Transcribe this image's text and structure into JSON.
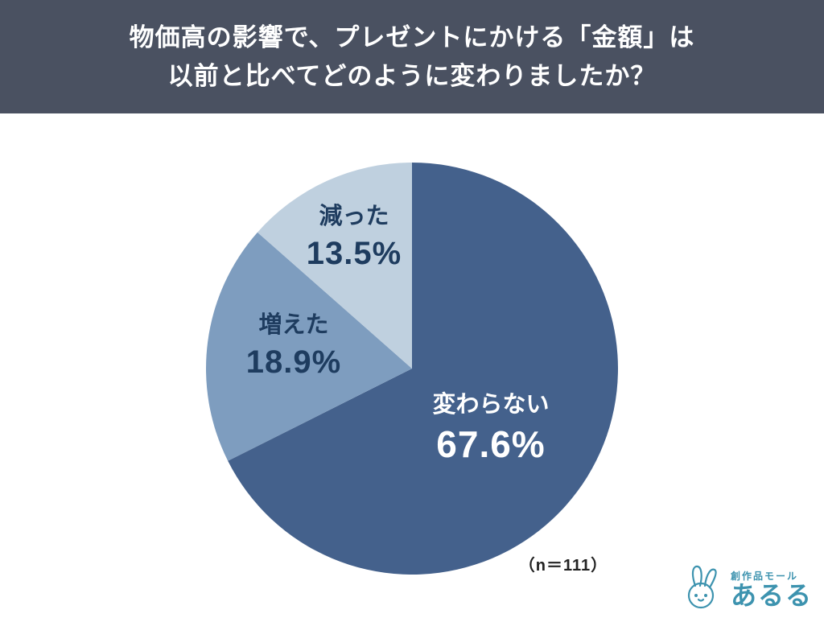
{
  "header": {
    "line1": "物価高の影響で、プレゼントにかける「金額」は",
    "line2": "以前と比べてどのように変わりましたか？",
    "bg_color": "#4a5161",
    "text_color": "#ffffff"
  },
  "chart_data": {
    "type": "pie",
    "title": "物価高の影響で、プレゼントにかける「金額」は以前と比べてどのように変わりましたか？",
    "start_angle": "top",
    "direction": "clockwise",
    "n_label": "（n＝111）",
    "slices": [
      {
        "label": "変わらない",
        "value_pct": 67.6,
        "value_label": "67.6%",
        "color": "#44618c",
        "text_color": "#ffffff"
      },
      {
        "label": "増えた",
        "value_pct": 18.9,
        "value_label": "18.9%",
        "color": "#7e9dbf",
        "text_color": "#1e3c5f"
      },
      {
        "label": "減った",
        "value_pct": 13.5,
        "value_label": "13.5%",
        "color": "#bfd0df",
        "text_color": "#1e3c5f"
      }
    ]
  },
  "footer": {
    "logo": {
      "small_text": "創作品モール",
      "main_text": "あるる",
      "color": "#3d93af"
    }
  }
}
